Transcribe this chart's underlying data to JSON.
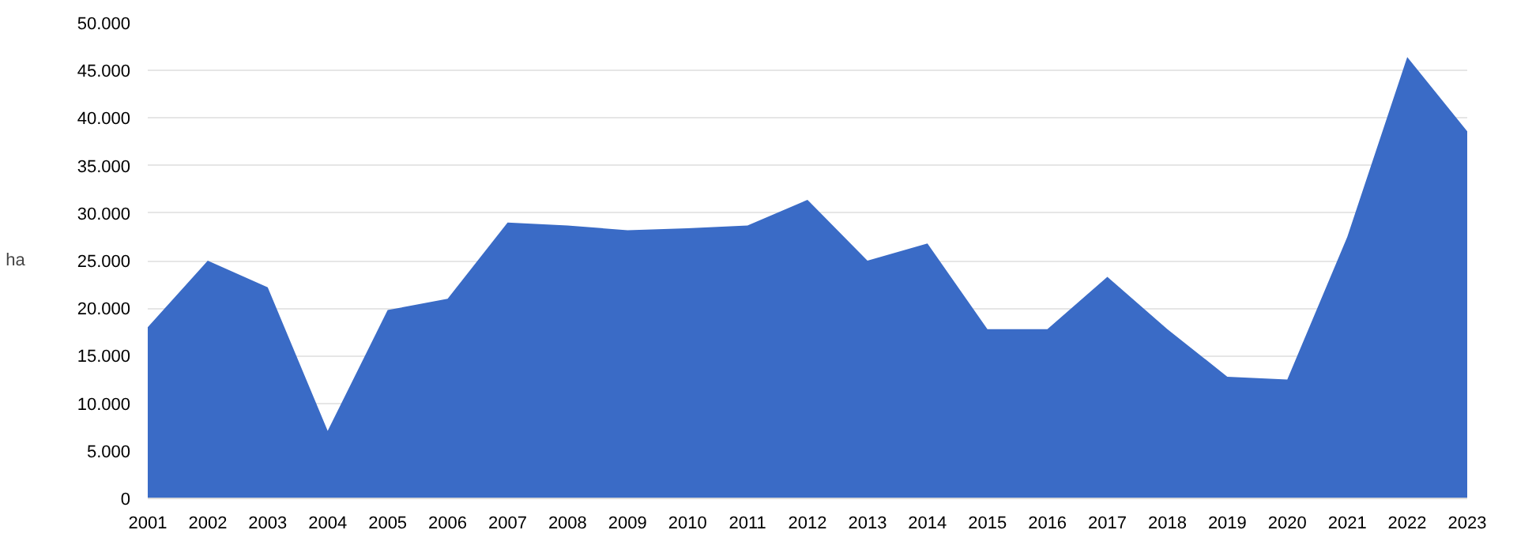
{
  "chart_data": {
    "type": "area",
    "ylabel": "ha",
    "categories": [
      "2001",
      "2002",
      "2003",
      "2004",
      "2005",
      "2006",
      "2007",
      "2008",
      "2009",
      "2010",
      "2011",
      "2012",
      "2013",
      "2014",
      "2015",
      "2016",
      "2017",
      "2018",
      "2019",
      "2020",
      "2021",
      "2022",
      "2023"
    ],
    "values": [
      18000,
      25000,
      22200,
      7100,
      19800,
      21000,
      29000,
      28700,
      28200,
      28400,
      28700,
      31400,
      25000,
      26800,
      17800,
      17800,
      23300,
      17800,
      12800,
      12500,
      27500,
      46400,
      38600
    ],
    "color": "#3a6bc6",
    "ylim": [
      0,
      50000
    ],
    "yticks": [
      {
        "value": 0,
        "label": "0"
      },
      {
        "value": 5000,
        "label": "5.000"
      },
      {
        "value": 10000,
        "label": "10.000"
      },
      {
        "value": 15000,
        "label": "15.000"
      },
      {
        "value": 20000,
        "label": "20.000"
      },
      {
        "value": 25000,
        "label": "25.000"
      },
      {
        "value": 30000,
        "label": "30.000"
      },
      {
        "value": 35000,
        "label": "35.000"
      },
      {
        "value": 40000,
        "label": "40.000"
      },
      {
        "value": 45000,
        "label": "45.000"
      },
      {
        "value": 50000,
        "label": "50.000"
      }
    ],
    "grid": "y"
  }
}
